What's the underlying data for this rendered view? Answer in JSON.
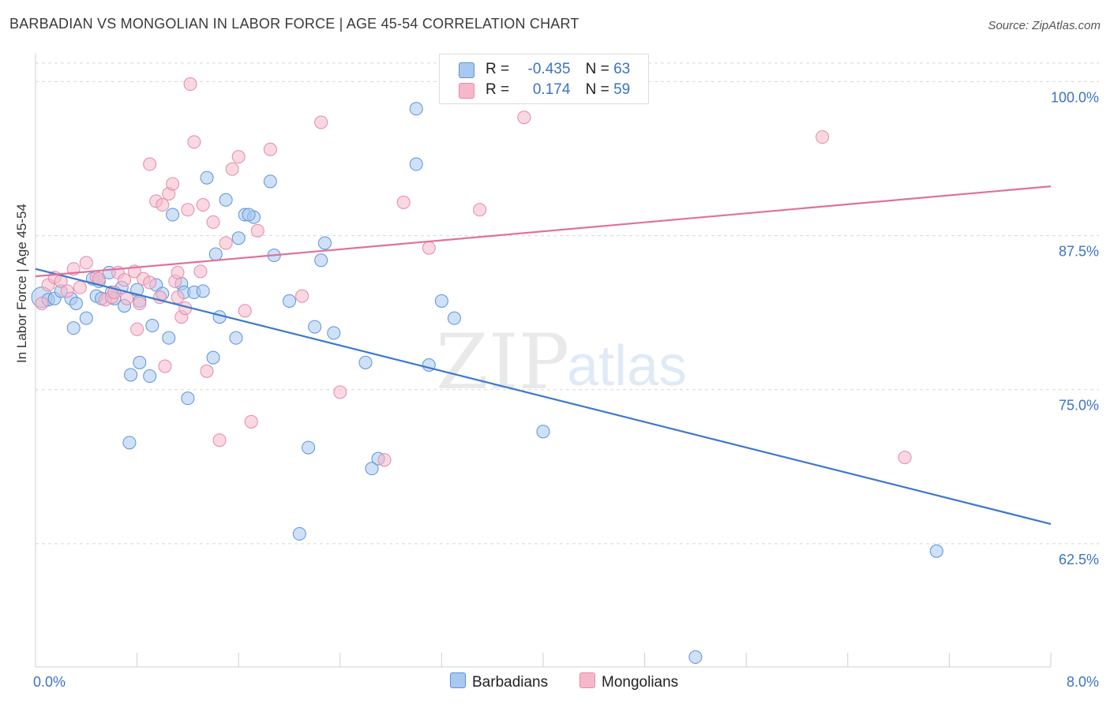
{
  "title": "BARBADIAN VS MONGOLIAN IN LABOR FORCE | AGE 45-54 CORRELATION CHART",
  "source": "Source: ZipAtlas.com",
  "watermark": {
    "zip": "ZIP",
    "atlas": "atlas"
  },
  "legend": {
    "rows": [
      {
        "r_label": "R =",
        "r_value": "-0.435",
        "n_label": "N =",
        "n_value": "63",
        "color": "#a9c8f0"
      },
      {
        "r_label": "R =",
        "r_value": "0.174",
        "n_label": "N =",
        "n_value": "59",
        "color": "#f5b8cb"
      }
    ]
  },
  "bottom_legend": [
    {
      "label": "Barbadians",
      "color": "#a9c8f0"
    },
    {
      "label": "Mongolians",
      "color": "#f5b8cb"
    }
  ],
  "chart_data": {
    "type": "scatter",
    "title": "BARBADIAN VS MONGOLIAN IN LABOR FORCE | AGE 45-54 CORRELATION CHART",
    "xlabel": "",
    "ylabel": "In Labor Force | Age 45-54",
    "xlim": [
      0.0,
      8.0
    ],
    "ylim": [
      52.5,
      101.5
    ],
    "x_tick_labels": [
      "0.0%",
      "8.0%"
    ],
    "y_ticks": [
      62.5,
      75.0,
      87.5,
      100.0
    ],
    "y_tick_labels": [
      "62.5%",
      "75.0%",
      "87.5%",
      "100.0%"
    ],
    "grid": true,
    "series": [
      {
        "name": "Barbadians",
        "color": "#5b93d8",
        "fill": "#a9c8f0",
        "trend": {
          "x": [
            0.0,
            8.0
          ],
          "y": [
            84.8,
            64.1
          ],
          "color": "#3b78d0"
        },
        "points": [
          [
            0.05,
            82.5
          ],
          [
            0.1,
            82.3
          ],
          [
            0.15,
            82.4
          ],
          [
            0.2,
            83.0
          ],
          [
            0.28,
            82.4
          ],
          [
            0.3,
            80.0
          ],
          [
            0.32,
            82.0
          ],
          [
            0.4,
            80.8
          ],
          [
            0.5,
            83.8
          ],
          [
            0.45,
            84.0
          ],
          [
            0.48,
            82.6
          ],
          [
            0.52,
            82.4
          ],
          [
            0.58,
            84.5
          ],
          [
            0.6,
            82.9
          ],
          [
            0.62,
            82.4
          ],
          [
            0.68,
            83.3
          ],
          [
            0.7,
            81.8
          ],
          [
            0.74,
            70.7
          ],
          [
            0.8,
            83.1
          ],
          [
            0.82,
            82.2
          ],
          [
            0.75,
            76.2
          ],
          [
            0.82,
            77.2
          ],
          [
            0.9,
            76.1
          ],
          [
            0.92,
            80.2
          ],
          [
            0.95,
            83.5
          ],
          [
            1.0,
            82.8
          ],
          [
            1.05,
            79.2
          ],
          [
            1.08,
            89.2
          ],
          [
            1.15,
            83.6
          ],
          [
            1.17,
            82.9
          ],
          [
            1.2,
            74.3
          ],
          [
            1.25,
            82.9
          ],
          [
            1.32,
            83.0
          ],
          [
            1.35,
            92.2
          ],
          [
            1.4,
            77.6
          ],
          [
            1.42,
            86.0
          ],
          [
            1.45,
            80.9
          ],
          [
            1.5,
            90.4
          ],
          [
            1.58,
            79.2
          ],
          [
            1.6,
            87.3
          ],
          [
            1.65,
            89.2
          ],
          [
            1.72,
            89.0
          ],
          [
            1.68,
            89.2
          ],
          [
            1.85,
            91.9
          ],
          [
            1.88,
            85.9
          ],
          [
            2.0,
            82.2
          ],
          [
            2.08,
            63.3
          ],
          [
            2.15,
            70.3
          ],
          [
            2.2,
            80.1
          ],
          [
            2.25,
            85.5
          ],
          [
            2.28,
            86.9
          ],
          [
            2.35,
            79.6
          ],
          [
            2.6,
            77.2
          ],
          [
            2.65,
            68.6
          ],
          [
            2.7,
            69.4
          ],
          [
            3.0,
            97.8
          ],
          [
            3.0,
            93.3
          ],
          [
            3.1,
            77.0
          ],
          [
            3.2,
            82.2
          ],
          [
            3.3,
            80.8
          ],
          [
            4.0,
            71.6
          ],
          [
            7.1,
            61.9
          ],
          [
            5.2,
            53.3
          ]
        ]
      },
      {
        "name": "Mongolians",
        "color": "#e58aa7",
        "fill": "#f5b8cb",
        "trend": {
          "x": [
            0.0,
            8.0
          ],
          "y": [
            84.2,
            91.5
          ],
          "color": "#e0709a"
        },
        "points": [
          [
            0.05,
            82.0
          ],
          [
            0.1,
            83.5
          ],
          [
            0.15,
            84.1
          ],
          [
            0.2,
            83.8
          ],
          [
            0.25,
            83.0
          ],
          [
            0.3,
            84.8
          ],
          [
            0.35,
            83.3
          ],
          [
            0.4,
            85.3
          ],
          [
            0.48,
            84.1
          ],
          [
            0.5,
            84.0
          ],
          [
            0.55,
            82.3
          ],
          [
            0.6,
            82.5
          ],
          [
            0.62,
            82.9
          ],
          [
            0.65,
            84.5
          ],
          [
            0.7,
            83.9
          ],
          [
            0.72,
            82.4
          ],
          [
            0.78,
            84.6
          ],
          [
            0.8,
            79.9
          ],
          [
            0.82,
            82.0
          ],
          [
            0.85,
            84.0
          ],
          [
            0.9,
            83.7
          ],
          [
            0.9,
            93.3
          ],
          [
            0.95,
            90.3
          ],
          [
            1.0,
            90.0
          ],
          [
            0.98,
            82.5
          ],
          [
            1.02,
            76.9
          ],
          [
            1.05,
            90.9
          ],
          [
            1.08,
            91.7
          ],
          [
            1.1,
            83.8
          ],
          [
            1.12,
            82.5
          ],
          [
            1.15,
            80.9
          ],
          [
            1.18,
            81.6
          ],
          [
            1.2,
            89.6
          ],
          [
            1.22,
            99.8
          ],
          [
            1.25,
            95.1
          ],
          [
            1.3,
            84.6
          ],
          [
            1.32,
            90.0
          ],
          [
            1.35,
            76.5
          ],
          [
            1.4,
            88.6
          ],
          [
            1.45,
            70.9
          ],
          [
            1.5,
            86.9
          ],
          [
            1.55,
            92.9
          ],
          [
            1.6,
            93.9
          ],
          [
            1.65,
            81.4
          ],
          [
            1.7,
            72.4
          ],
          [
            1.75,
            87.9
          ],
          [
            1.85,
            94.5
          ],
          [
            2.1,
            82.6
          ],
          [
            2.25,
            96.7
          ],
          [
            2.4,
            74.8
          ],
          [
            2.75,
            69.3
          ],
          [
            2.9,
            90.2
          ],
          [
            3.1,
            86.5
          ],
          [
            3.5,
            89.6
          ],
          [
            3.85,
            97.1
          ],
          [
            4.05,
            99.6
          ],
          [
            6.2,
            95.5
          ],
          [
            6.85,
            69.5
          ],
          [
            1.12,
            84.5
          ]
        ]
      }
    ]
  }
}
